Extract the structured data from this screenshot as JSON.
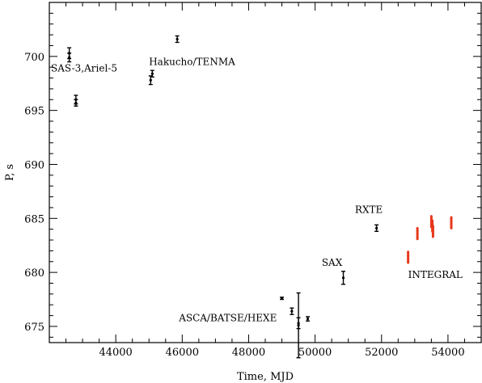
{
  "chart_data": {
    "type": "scatter",
    "title": "",
    "xlabel": "Time, MJD",
    "ylabel": "P, s",
    "xlim": [
      42000,
      55000
    ],
    "ylim": [
      673.5,
      705
    ],
    "x_ticks": [
      44000,
      46000,
      48000,
      50000,
      52000,
      54000
    ],
    "y_ticks": [
      675,
      680,
      685,
      690,
      695,
      700
    ],
    "grid": false,
    "legend": "none",
    "annotations": [
      {
        "text": "SAS-3,Ariel-5",
        "x": 42050,
        "y": 698.6
      },
      {
        "text": "Hakucho/TENMA",
        "x": 45000,
        "y": 699.2
      },
      {
        "text": "RXTE",
        "x": 51200,
        "y": 685.5
      },
      {
        "text": "SAX",
        "x": 50200,
        "y": 680.6
      },
      {
        "text": "ASCA/BATSE/HEXE",
        "x": 45900,
        "y": 675.5
      },
      {
        "text": "INTEGRAL",
        "x": 52800,
        "y": 679.5
      }
    ],
    "series": [
      {
        "color": "#000000",
        "points": [
          {
            "x": 42600,
            "y": 700.3,
            "err": 0.5
          },
          {
            "x": 42600,
            "y": 699.9,
            "err": 0.4
          },
          {
            "x": 42800,
            "y": 696.0,
            "err": 0.4
          },
          {
            "x": 42800,
            "y": 695.7,
            "err": 0.3
          },
          {
            "x": 45100,
            "y": 698.4,
            "err": 0.3
          },
          {
            "x": 45050,
            "y": 697.8,
            "err": 0.4
          },
          {
            "x": 45850,
            "y": 701.6,
            "err": 0.3
          },
          {
            "x": 49000,
            "y": 677.6,
            "err": 0.1
          },
          {
            "x": 49300,
            "y": 676.4,
            "err": 0.3
          },
          {
            "x": 49500,
            "y": 675.1,
            "err": 3.0
          },
          {
            "x": 49500,
            "y": 675.3,
            "err": 0.5
          },
          {
            "x": 49780,
            "y": 675.7,
            "err": 0.2
          },
          {
            "x": 50850,
            "y": 679.5,
            "err": 0.6
          },
          {
            "x": 51850,
            "y": 684.1,
            "err": 0.3
          }
        ]
      },
      {
        "color": "#e8381b",
        "points": [
          {
            "x": 52800,
            "y": 681.4,
            "err": 0.5
          },
          {
            "x": 53080,
            "y": 683.6,
            "err": 0.5
          },
          {
            "x": 53500,
            "y": 684.7,
            "err": 0.5
          },
          {
            "x": 53530,
            "y": 684.3,
            "err": 0.5
          },
          {
            "x": 53550,
            "y": 683.8,
            "err": 0.5
          },
          {
            "x": 54100,
            "y": 684.6,
            "err": 0.5
          }
        ]
      }
    ]
  }
}
